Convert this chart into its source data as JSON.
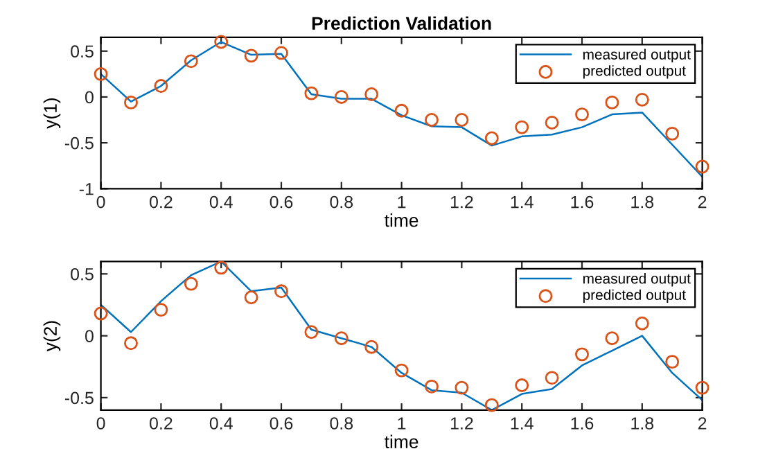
{
  "chart_data": [
    {
      "type": "line",
      "title": "Prediction Validation",
      "xlabel": "time",
      "ylabel": "y(1)",
      "x": [
        0,
        0.1,
        0.2,
        0.3,
        0.4,
        0.5,
        0.6,
        0.7,
        0.8,
        0.9,
        1.0,
        1.1,
        1.2,
        1.3,
        1.4,
        1.5,
        1.6,
        1.7,
        1.8,
        1.9,
        2.0
      ],
      "series": [
        {
          "name": "measured output",
          "color": "#0072bd",
          "values": [
            0.25,
            -0.05,
            0.12,
            0.4,
            0.6,
            0.46,
            0.47,
            0.03,
            -0.02,
            -0.02,
            -0.2,
            -0.32,
            -0.33,
            -0.53,
            -0.43,
            -0.41,
            -0.33,
            -0.19,
            -0.17,
            -0.52,
            -0.87
          ]
        },
        {
          "name": "predicted output",
          "type": "scatter",
          "color": "#d95319",
          "marker": "circle",
          "values": [
            0.25,
            -0.06,
            0.12,
            0.39,
            0.6,
            0.45,
            0.48,
            0.04,
            0.0,
            0.03,
            -0.15,
            -0.25,
            -0.25,
            -0.45,
            -0.33,
            -0.28,
            -0.19,
            -0.06,
            -0.03,
            -0.4,
            -0.76
          ]
        }
      ],
      "xlim": [
        0,
        2
      ],
      "xticks": [
        0,
        0.2,
        0.4,
        0.6,
        0.8,
        1,
        1.2,
        1.4,
        1.6,
        1.8,
        2
      ],
      "ylim": [
        -1,
        0.65
      ],
      "yticks": [
        -1,
        -0.5,
        0,
        0.5
      ],
      "legend": "top right",
      "grid": false
    },
    {
      "type": "line",
      "xlabel": "time",
      "ylabel": "y(2)",
      "x": [
        0,
        0.1,
        0.2,
        0.3,
        0.4,
        0.5,
        0.6,
        0.7,
        0.8,
        0.9,
        1.0,
        1.1,
        1.2,
        1.3,
        1.4,
        1.5,
        1.6,
        1.7,
        1.8,
        1.9,
        2.0
      ],
      "series": [
        {
          "name": "measured output",
          "color": "#0072bd",
          "values": [
            0.25,
            0.03,
            0.28,
            0.49,
            0.6,
            0.36,
            0.39,
            0.05,
            -0.02,
            -0.09,
            -0.3,
            -0.44,
            -0.46,
            -0.6,
            -0.47,
            -0.43,
            -0.24,
            -0.12,
            0.0,
            -0.3,
            -0.52
          ]
        },
        {
          "name": "predicted output",
          "type": "scatter",
          "color": "#d95319",
          "marker": "circle",
          "values": [
            0.18,
            -0.06,
            0.21,
            0.42,
            0.55,
            0.31,
            0.36,
            0.03,
            -0.02,
            -0.09,
            -0.28,
            -0.41,
            -0.42,
            -0.56,
            -0.4,
            -0.34,
            -0.15,
            -0.02,
            0.1,
            -0.21,
            -0.42
          ]
        }
      ],
      "xlim": [
        0,
        2
      ],
      "xticks": [
        0,
        0.2,
        0.4,
        0.6,
        0.8,
        1,
        1.2,
        1.4,
        1.6,
        1.8,
        2
      ],
      "ylim": [
        -0.6,
        0.6
      ],
      "yticks": [
        -0.5,
        0,
        0.5
      ],
      "legend": "top right",
      "grid": false
    }
  ]
}
